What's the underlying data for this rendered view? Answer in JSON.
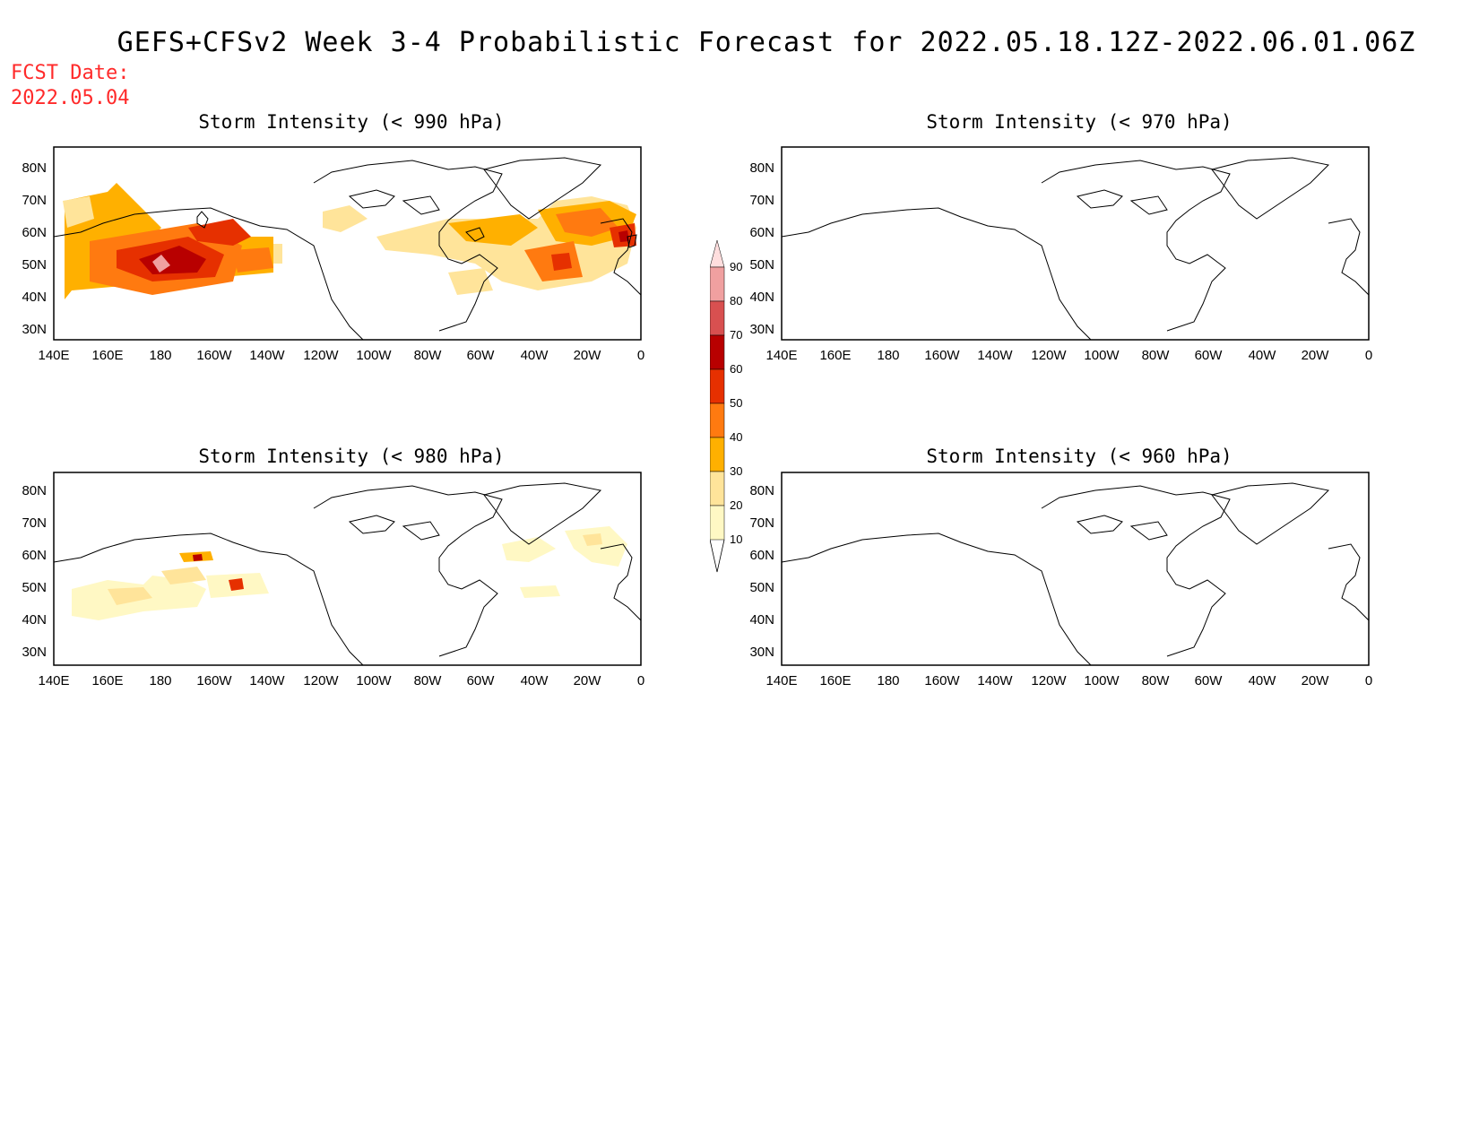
{
  "page": {
    "title": "GEFS+CFSv2 Week 3-4 Probabilistic Forecast for 2022.05.18.12Z-2022.06.01.06Z",
    "fcst_label": "FCST Date:",
    "fcst_date": "2022.05.04"
  },
  "colors": {
    "title_text": "#000000",
    "fcst_text": "#ff2a2a",
    "levels": [
      "#fff8c4",
      "#ffe49a",
      "#ffb000",
      "#ff7a10",
      "#e63000",
      "#b80000",
      "#d85050",
      "#f0a0a0",
      "#ffdede"
    ]
  },
  "panels": [
    {
      "id": "p990",
      "title": "Storm Intensity (< 990 hPa)"
    },
    {
      "id": "p970",
      "title": "Storm Intensity (< 970 hPa)"
    },
    {
      "id": "p980",
      "title": "Storm Intensity (< 980 hPa)"
    },
    {
      "id": "p960",
      "title": "Storm Intensity (< 960 hPa)"
    }
  ],
  "axes": {
    "lon_labels": [
      "140E",
      "160E",
      "180",
      "160W",
      "140W",
      "120W",
      "100W",
      "80W",
      "60W",
      "40W",
      "20W",
      "0"
    ],
    "lat_labels": [
      "80N",
      "70N",
      "60N",
      "50N",
      "40N",
      "30N"
    ]
  },
  "colorbar": {
    "levels": [
      10,
      20,
      30,
      40,
      50,
      60,
      70,
      80,
      90
    ],
    "labels": [
      "10",
      "20",
      "30",
      "40",
      "50",
      "60",
      "70",
      "80",
      "90"
    ]
  }
}
